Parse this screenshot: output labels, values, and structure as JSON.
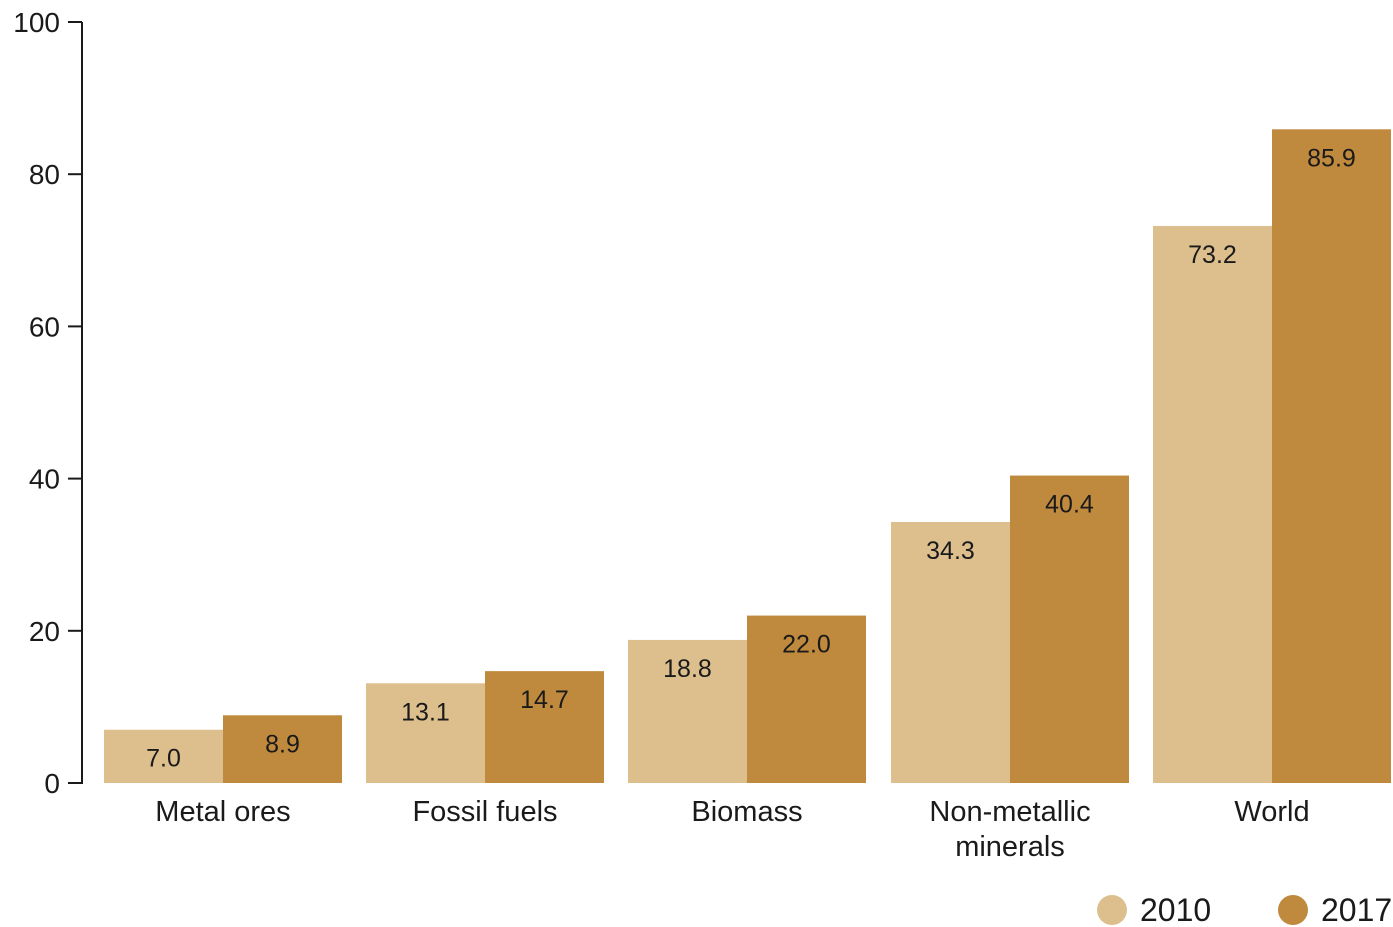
{
  "chart_data": {
    "type": "bar",
    "categories": [
      [
        "Metal ores"
      ],
      [
        "Fossil fuels"
      ],
      [
        "Biomass"
      ],
      [
        "Non-metallic",
        "minerals"
      ],
      [
        "World"
      ]
    ],
    "series": [
      {
        "name": "2010",
        "color": "#dcbf8d",
        "values": [
          7.0,
          13.1,
          18.8,
          34.3,
          73.2
        ],
        "labels": [
          "7.0",
          "13.1",
          "18.8",
          "34.3",
          "73.2"
        ]
      },
      {
        "name": "2017",
        "color": "#c08a3e",
        "values": [
          8.9,
          14.7,
          22.0,
          40.4,
          85.9
        ],
        "labels": [
          "8.9",
          "14.7",
          "22.0",
          "40.4",
          "85.9"
        ]
      }
    ],
    "yticks": [
      "0",
      "20",
      "40",
      "60",
      "80",
      "100"
    ],
    "ylim": [
      0,
      100
    ],
    "legend_position": "bottom-right",
    "grid": false,
    "axis_color": "#1a1a1a"
  }
}
